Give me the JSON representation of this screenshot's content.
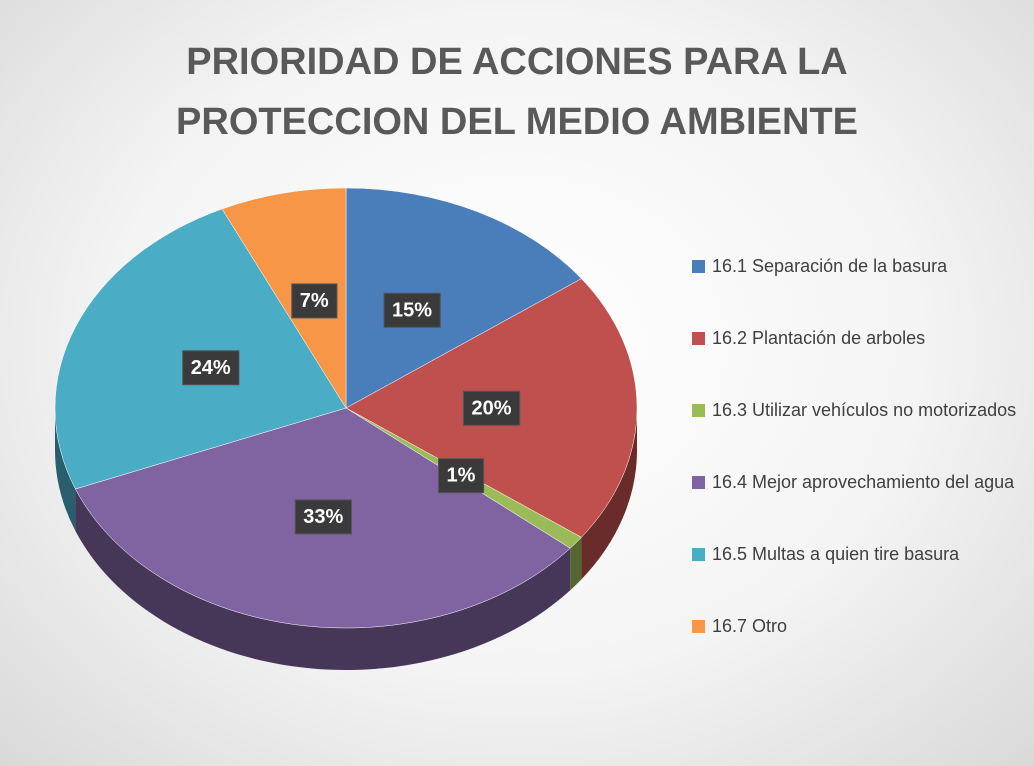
{
  "chart_data": {
    "type": "pie",
    "title": "PRIORIDAD DE ACCIONES PARA LA PROTECCION DEL MEDIO AMBIENTE",
    "categories": [
      "16.1 Separación de la basura",
      "16.2 Plantación de arboles",
      "16.3 Utilizar vehículos no motorizados",
      "16.4 Mejor aprovechamiento del agua",
      "16.5 Multas a quien tire basura",
      "16.7 Otro"
    ],
    "values": [
      15,
      20,
      1,
      33,
      24,
      7
    ],
    "value_labels": [
      "15%",
      "20%",
      "1%",
      "33%",
      "24%",
      "7%"
    ],
    "colors": [
      "#4a7ebb",
      "#c0504d",
      "#9bbb59",
      "#8064a2",
      "#4bacc6",
      "#f79646"
    ],
    "legend": "right"
  }
}
